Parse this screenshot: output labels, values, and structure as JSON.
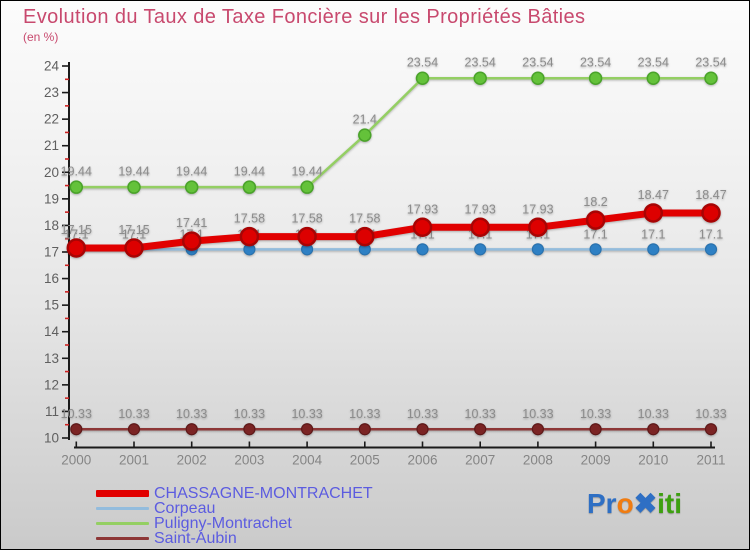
{
  "title": "Evolution du Taux de Taxe Foncière sur les Propriétés Bâties",
  "subtitle": "(en %)",
  "style": {
    "title_color": "#c8496e",
    "axis_color": "#1a1a1a",
    "minor_tick_color": "#cc2222",
    "axis_label_color": "#5f5f5f",
    "year_label_color": "#858585",
    "value_label_color": "#8c8c8c",
    "legend_text_color": "#5c5ce0",
    "background_top": "#fcfcfc",
    "background_bottom": "#cacaca"
  },
  "chart_data": {
    "type": "line",
    "title": "Evolution du Taux de Taxe Foncière sur les Propriétés Bâties",
    "subtitle": "(en %)",
    "x": [
      2000,
      2001,
      2002,
      2003,
      2004,
      2005,
      2006,
      2007,
      2008,
      2009,
      2010,
      2011
    ],
    "ylim": [
      10,
      24
    ],
    "y_major_step": 1,
    "y_minor_step": 0.5,
    "grid": false,
    "legend_position": "bottom-left",
    "series": [
      {
        "name": "CHASSAGNE-MONTRACHET",
        "line_color": "#e10000",
        "line_width": 7,
        "marker_color": "#dd0000",
        "marker_edge": "#a80404",
        "marker_edge_width": 2.5,
        "marker_r": 8.5,
        "values": [
          17.15,
          17.15,
          17.41,
          17.58,
          17.58,
          17.58,
          17.93,
          17.93,
          17.93,
          18.2,
          18.47,
          18.47
        ]
      },
      {
        "name": "Corpeau",
        "line_color": "#93bcdd",
        "line_width": 2.5,
        "marker_color": "#2e80c4",
        "marker_edge": "#2a72ae",
        "marker_edge_width": 1.2,
        "marker_r": 5.5,
        "values": [
          17.1,
          17.1,
          17.1,
          17.1,
          17.1,
          17.1,
          17.1,
          17.1,
          17.1,
          17.1,
          17.1,
          17.1
        ]
      },
      {
        "name": "Puligny-Montrachet",
        "line_color": "#94cf63",
        "line_width": 2.5,
        "marker_color": "#64c23a",
        "marker_edge": "#4aa32a",
        "marker_edge_width": 1.5,
        "marker_r": 6,
        "values": [
          19.44,
          19.44,
          19.44,
          19.44,
          19.44,
          21.4,
          23.54,
          23.54,
          23.54,
          23.54,
          23.54,
          23.54
        ]
      },
      {
        "name": "Saint-Aubin",
        "line_color": "#8d3737",
        "line_width": 2.5,
        "marker_color": "#7b2424",
        "marker_edge": "#5e1919",
        "marker_edge_width": 1.2,
        "marker_r": 5.5,
        "values": [
          10.33,
          10.33,
          10.33,
          10.33,
          10.33,
          10.33,
          10.33,
          10.33,
          10.33,
          10.33,
          10.33,
          10.33
        ]
      }
    ]
  },
  "logo": {
    "name": "Proxiti",
    "parts": [
      {
        "text": "Pr",
        "color": "#2e6fc4"
      },
      {
        "text": "o",
        "color": "#f07c11"
      },
      {
        "text": "✖",
        "color": "#2e6fc4"
      },
      {
        "text": "iti",
        "color": "#3da010"
      }
    ]
  }
}
